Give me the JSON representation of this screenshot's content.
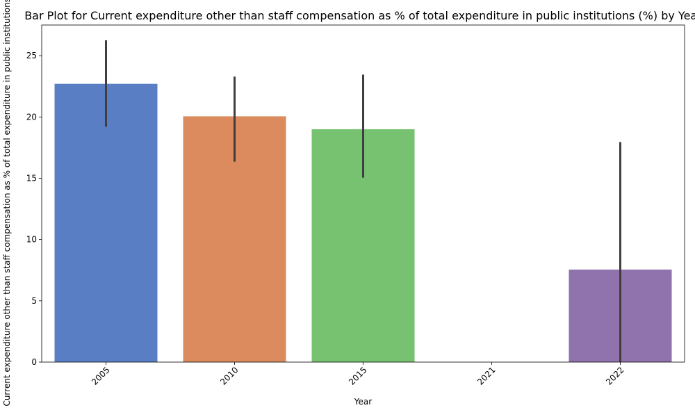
{
  "chart_data": {
    "type": "bar",
    "title": "Bar Plot for Current expenditure other than staff compensation as % of total expenditure in public institutions (%) by Year",
    "xlabel": "Year",
    "ylabel": "Current expenditure other than staff compensation as % of total expenditure in public institutions (%)",
    "categories": [
      "2005",
      "2010",
      "2015",
      "2021",
      "2022"
    ],
    "values": [
      22.7,
      20.05,
      19.0,
      0,
      7.55
    ],
    "error_low": [
      19.2,
      16.35,
      15.05,
      null,
      0.0
    ],
    "error_high": [
      26.25,
      23.3,
      23.45,
      null,
      17.95
    ],
    "colors": [
      "#5a7ec3",
      "#db8b5e",
      "#76c270",
      "#ffffff",
      "#9072ac"
    ],
    "errorbar_color": "#3f3f3f",
    "ylim": [
      0,
      27.5
    ],
    "yticks": [
      0,
      5,
      10,
      15,
      20,
      25
    ],
    "grid": false,
    "legend": "none"
  }
}
